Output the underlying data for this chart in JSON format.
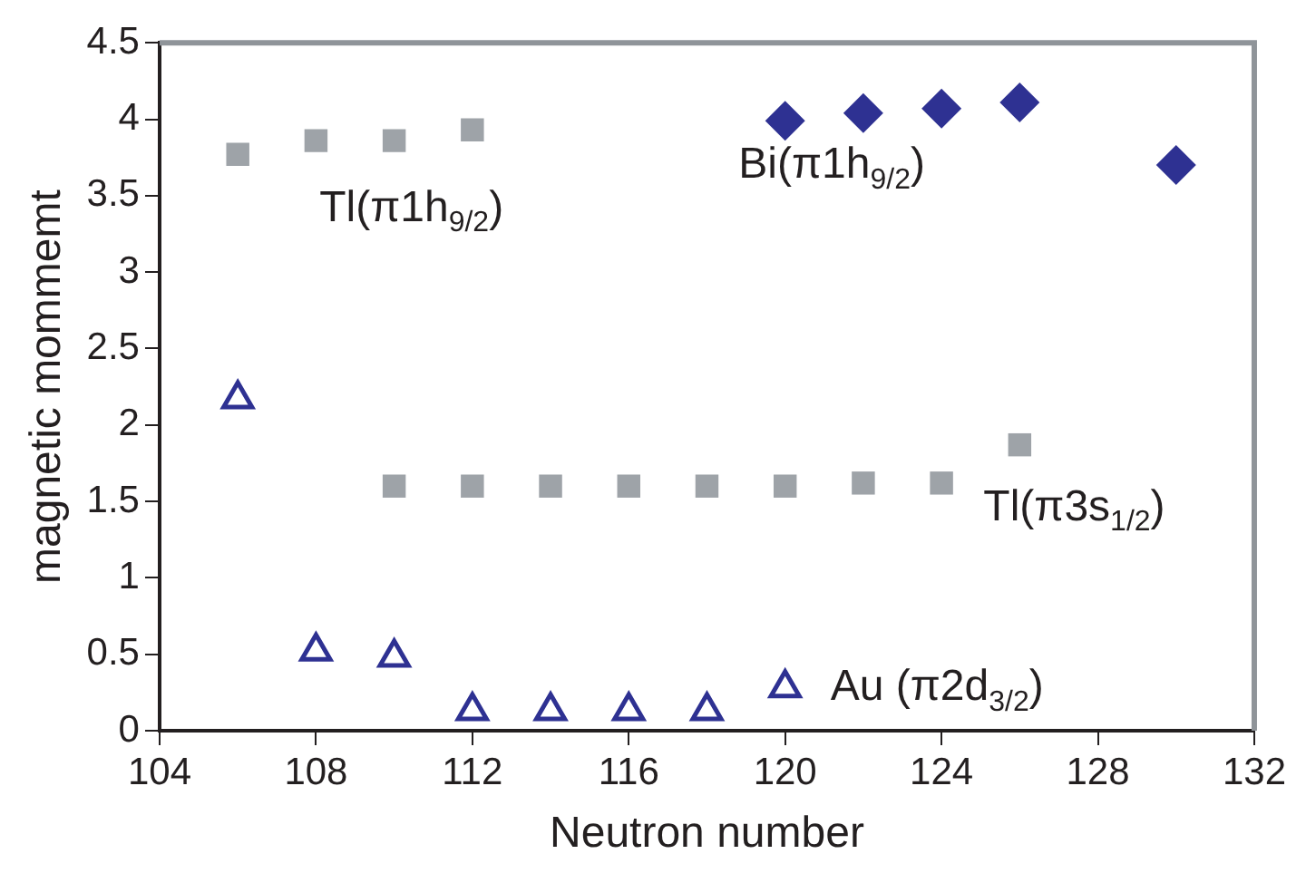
{
  "chart_data": {
    "type": "scatter",
    "xlabel": "Neutron number",
    "ylabel": "magnetic mommemt",
    "xlim": [
      104,
      132
    ],
    "xticks": [
      104,
      108,
      112,
      116,
      120,
      124,
      128,
      132
    ],
    "ylim": [
      0,
      4.5
    ],
    "yticks": [
      0,
      0.5,
      1,
      1.5,
      2,
      2.5,
      3,
      3.5,
      4,
      4.5
    ],
    "grid": false,
    "legend": false,
    "series": [
      {
        "name": "Tl(π1h$_{9/2}$)",
        "color": "#9ea3a8",
        "marker": "square",
        "x": [
          106,
          108,
          110,
          112
        ],
        "values": [
          3.77,
          3.86,
          3.86,
          3.93
        ]
      },
      {
        "name": "Bi(π1h$_{9/2}$)",
        "color": "#2e3192",
        "marker": "diamond",
        "x": [
          120,
          122,
          124,
          126,
          130
        ],
        "values": [
          3.99,
          4.04,
          4.07,
          4.11,
          3.7
        ]
      },
      {
        "name": "Tl(π3s$_{1/2}$)",
        "color": "#9ea3a8",
        "marker": "square",
        "x": [
          110,
          112,
          114,
          116,
          118,
          120,
          122,
          124,
          126
        ],
        "values": [
          1.6,
          1.6,
          1.6,
          1.6,
          1.6,
          1.6,
          1.62,
          1.62,
          1.87
        ]
      },
      {
        "name": "Au (π2d$_{3/2}$)",
        "color": "#2e3192",
        "marker": "triangle",
        "x": [
          106,
          108,
          110,
          112,
          114,
          116,
          118,
          120
        ],
        "values": [
          2.17,
          0.52,
          0.48,
          0.13,
          0.13,
          0.13,
          0.13,
          0.28
        ]
      }
    ]
  }
}
